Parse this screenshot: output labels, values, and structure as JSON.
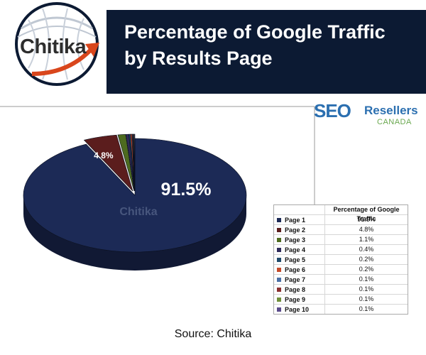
{
  "header": {
    "title_line_1": "Percentage of Google Traffic",
    "title_line_2": "by Results Page",
    "logo": "Chitika"
  },
  "seo_logo": {
    "text": "SEO",
    "resellers": "Resellers",
    "canada": "CANADA"
  },
  "colors": {
    "banner": "#0c1a33",
    "accent_red": "#d9461c",
    "pie_main": "#1c2a56"
  },
  "chart_data": {
    "type": "pie",
    "title": "",
    "categories": [
      "Page 1",
      "Page 2",
      "Page 3",
      "Page 4",
      "Page 5",
      "Page 6",
      "Page 7",
      "Page 8",
      "Page 9",
      "Page 10"
    ],
    "values": [
      91.5,
      4.8,
      1.1,
      0.4,
      0.2,
      0.2,
      0.1,
      0.1,
      0.1,
      0.1
    ],
    "value_labels": [
      "91.5%",
      "4.8%",
      "1.1%",
      "0.4%",
      "0.2%",
      "0.2%",
      "0.1%",
      "0.1%",
      "0.1%",
      "0.1%"
    ],
    "colors": [
      "#1c2a56",
      "#5b1d1d",
      "#4d6b1f",
      "#2e2a5a",
      "#1f4a6b",
      "#c44a2a",
      "#4a6fa5",
      "#8a2f2f",
      "#6f8f3a",
      "#5a4a8a"
    ],
    "watermark": "Chitika",
    "legend": {
      "header": "Percentage of Google Traffic",
      "position": "bottom-right"
    }
  },
  "footer": {
    "source": "Source: Chitika"
  }
}
